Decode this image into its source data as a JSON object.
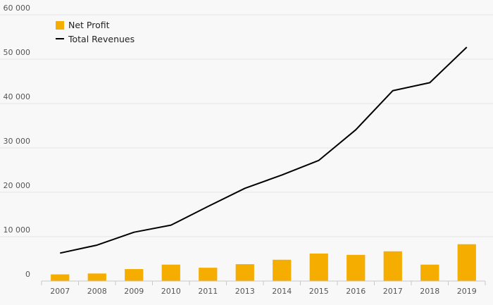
{
  "chart_data": {
    "type": "bar",
    "title": "",
    "xlabel": "",
    "ylabel": "",
    "categories": [
      "2007",
      "2008",
      "2009",
      "2010",
      "2011",
      "2013",
      "2014",
      "2015",
      "2016",
      "2017",
      "2018",
      "2019"
    ],
    "series": [
      {
        "name": "Net Profit",
        "type": "bar",
        "color": "#f5ad00",
        "values": [
          1500,
          1700,
          2700,
          3700,
          3000,
          3800,
          4800,
          6200,
          5900,
          6700,
          3700,
          8300
        ]
      },
      {
        "name": "Total Revenues",
        "type": "line",
        "color": "#000000",
        "values": [
          6300,
          8100,
          11000,
          12600,
          16800,
          20900,
          23900,
          27200,
          34100,
          42900,
          44700,
          52700
        ]
      }
    ],
    "ylim": [
      0,
      60000
    ],
    "yticks": [
      0,
      10000,
      20000,
      30000,
      40000,
      50000,
      60000
    ],
    "ytick_labels": [
      "0",
      "10 000",
      "20 000",
      "30 000",
      "40 000",
      "50 000",
      "60 000"
    ],
    "grid": true,
    "legend_position": "top-left"
  }
}
